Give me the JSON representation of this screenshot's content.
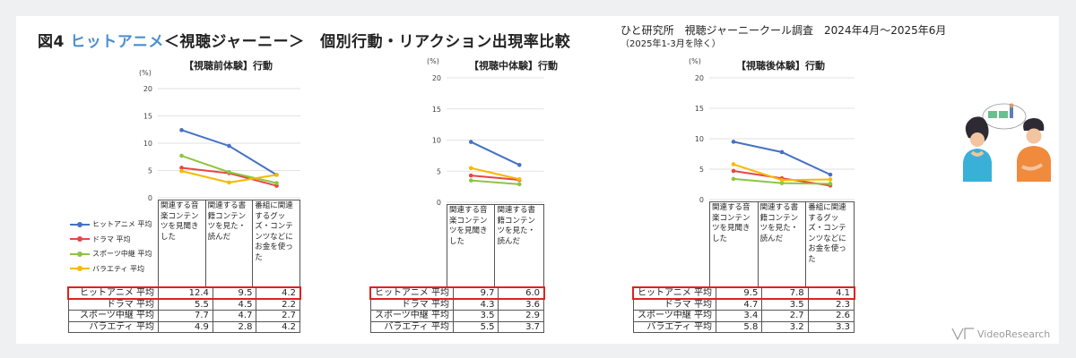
{
  "header": {
    "fig": "図4",
    "highlight": "ヒットアニメ",
    "title_rest": "＜視聴ジャーニー＞　個別行動・リアクション出現率比較",
    "survey": "ひと研究所　視聴ジャーニークール調査　2024年4月～2025年6月",
    "survey_note": "（2025年1-3月を除く）"
  },
  "logo_text": "VideoResearch",
  "colors": {
    "hit_anime": "#4472c4",
    "drama": "#e84545",
    "sports": "#8cc63f",
    "variety": "#f9b800",
    "highlight_box": "#dd2222",
    "title_accent": "#4a8fd0"
  },
  "legend": [
    {
      "name": "ヒットアニメ 平均"
    },
    {
      "name": "ドラマ 平均"
    },
    {
      "name": "スポーツ中継 平均"
    },
    {
      "name": "バラエティ 平均"
    }
  ],
  "chart_data": [
    {
      "type": "line",
      "title": "【視聴前体験】行動",
      "unit": "(%)",
      "ylim": [
        0,
        20
      ],
      "yticks": [
        "0",
        "5",
        "10",
        "15",
        "20"
      ],
      "categories": [
        "関連する音楽コンテンツを見聞きした",
        "関連する書籍コンテンツを見た・読んだ",
        "番組に関連するグッズ・コンテンツなどにお金を使った"
      ],
      "series": [
        {
          "name": "ヒットアニメ 平均",
          "values": [
            12.4,
            9.5,
            4.2
          ],
          "labels": [
            "12.4",
            "9.5",
            "4.2"
          ]
        },
        {
          "name": "ドラマ 平均",
          "values": [
            5.5,
            4.5,
            2.2
          ],
          "labels": [
            "5.5",
            "4.5",
            "2.2"
          ]
        },
        {
          "name": "スポーツ中継 平均",
          "values": [
            7.7,
            4.7,
            2.7
          ],
          "labels": [
            "7.7",
            "4.7",
            "2.7"
          ]
        },
        {
          "name": "バラエティ 平均",
          "values": [
            4.9,
            2.8,
            4.2
          ],
          "labels": [
            "4.9",
            "2.8",
            "4.2"
          ]
        }
      ]
    },
    {
      "type": "line",
      "title": "【視聴中体験】行動",
      "unit": "(%)",
      "ylim": [
        0,
        20
      ],
      "yticks": [
        "0",
        "5",
        "10",
        "15",
        "20"
      ],
      "categories": [
        "関連する音楽コンテンツを見聞きした",
        "関連する書籍コンテンツを見た・読んだ"
      ],
      "series": [
        {
          "name": "ヒットアニメ 平均",
          "values": [
            9.7,
            6.0
          ],
          "labels": [
            "9.7",
            "6.0"
          ]
        },
        {
          "name": "ドラマ 平均",
          "values": [
            4.3,
            3.6
          ],
          "labels": [
            "4.3",
            "3.6"
          ]
        },
        {
          "name": "スポーツ中継 平均",
          "values": [
            3.5,
            2.9
          ],
          "labels": [
            "3.5",
            "2.9"
          ]
        },
        {
          "name": "バラエティ 平均",
          "values": [
            5.5,
            3.7
          ],
          "labels": [
            "5.5",
            "3.7"
          ]
        }
      ]
    },
    {
      "type": "line",
      "title": "【視聴後体験】行動",
      "unit": "(%)",
      "ylim": [
        0,
        20
      ],
      "yticks": [
        "0",
        "5",
        "10",
        "15",
        "20"
      ],
      "categories": [
        "関連する音楽コンテンツを見聞きした",
        "関連する書籍コンテンツを見た・読んだ",
        "番組に関連するグッズ・コンテンツなどにお金を使った"
      ],
      "series": [
        {
          "name": "ヒットアニメ 平均",
          "values": [
            9.5,
            7.8,
            4.1
          ],
          "labels": [
            "9.5",
            "7.8",
            "4.1"
          ]
        },
        {
          "name": "ドラマ 平均",
          "values": [
            4.7,
            3.5,
            2.3
          ],
          "labels": [
            "4.7",
            "3.5",
            "2.3"
          ]
        },
        {
          "name": "スポーツ中継 平均",
          "values": [
            3.4,
            2.7,
            2.6
          ],
          "labels": [
            "3.4",
            "2.7",
            "2.6"
          ]
        },
        {
          "name": "バラエティ 平均",
          "values": [
            5.8,
            3.2,
            3.3
          ],
          "labels": [
            "5.8",
            "3.2",
            "3.3"
          ]
        }
      ]
    }
  ]
}
